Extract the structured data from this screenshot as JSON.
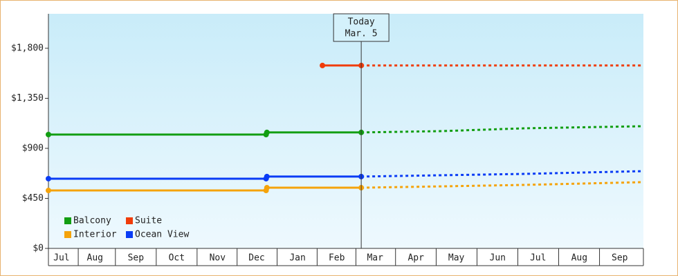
{
  "chart_data": {
    "type": "line",
    "xlim": [
      0.36,
      14.93
    ],
    "xticks": [
      {
        "value": 0.68,
        "label": "Jul"
      },
      {
        "value": 1.5,
        "label": "Aug"
      },
      {
        "value": 2.5,
        "label": "Sep"
      },
      {
        "value": 3.5,
        "label": "Oct"
      },
      {
        "value": 4.5,
        "label": "Nov"
      },
      {
        "value": 5.46,
        "label": "Dec"
      },
      {
        "value": 6.46,
        "label": "Jan"
      },
      {
        "value": 7.42,
        "label": "Feb"
      },
      {
        "value": 8.36,
        "label": "Mar"
      },
      {
        "value": 9.36,
        "label": "Apr"
      },
      {
        "value": 10.35,
        "label": "May"
      },
      {
        "value": 11.36,
        "label": "Jun"
      },
      {
        "value": 12.35,
        "label": "Jul"
      },
      {
        "value": 13.36,
        "label": "Aug"
      },
      {
        "value": 14.35,
        "label": "Sep"
      }
    ],
    "ylim": [
      0,
      2110
    ],
    "yticks": [
      {
        "value": 0,
        "label": "$0"
      },
      {
        "value": 450,
        "label": "$450"
      },
      {
        "value": 900,
        "label": "$900"
      },
      {
        "value": 1350,
        "label": "$1,350"
      },
      {
        "value": 1800,
        "label": "$1,800"
      }
    ],
    "annotations": [
      {
        "x": 8.02,
        "lines": [
          "Today",
          "Mar. 5"
        ]
      }
    ],
    "legend": "lower left",
    "series": [
      {
        "name": "Balcony",
        "color": "#129e12",
        "x": [
          0.36,
          5.69,
          5.71,
          8.02
        ],
        "values": [
          1024,
          1024,
          1043,
          1043
        ],
        "forecast_x": [
          8.02,
          10,
          12,
          14.93
        ],
        "forecast_values": [
          1043,
          1055,
          1080,
          1099
        ]
      },
      {
        "name": "Suite",
        "color": "#f03c0a",
        "x": [
          7.07,
          8.02
        ],
        "values": [
          1645,
          1645
        ],
        "forecast_x": [
          8.02,
          10,
          12,
          14.93
        ],
        "forecast_values": [
          1645,
          1645,
          1645,
          1645
        ]
      },
      {
        "name": "Interior",
        "color": "#f5a30a",
        "x": [
          0.36,
          5.69,
          5.71,
          8.02
        ],
        "values": [
          521,
          521,
          546,
          546
        ],
        "forecast_x": [
          8.02,
          10,
          12,
          14.93
        ],
        "forecast_values": [
          546,
          558,
          571,
          596
        ]
      },
      {
        "name": "Ocean View",
        "color": "#0a3cf5",
        "x": [
          0.36,
          5.69,
          5.71,
          8.02
        ],
        "values": [
          627,
          627,
          646,
          646
        ],
        "forecast_x": [
          8.02,
          10,
          12,
          14.93
        ],
        "forecast_values": [
          646,
          658,
          670,
          695
        ]
      }
    ]
  }
}
